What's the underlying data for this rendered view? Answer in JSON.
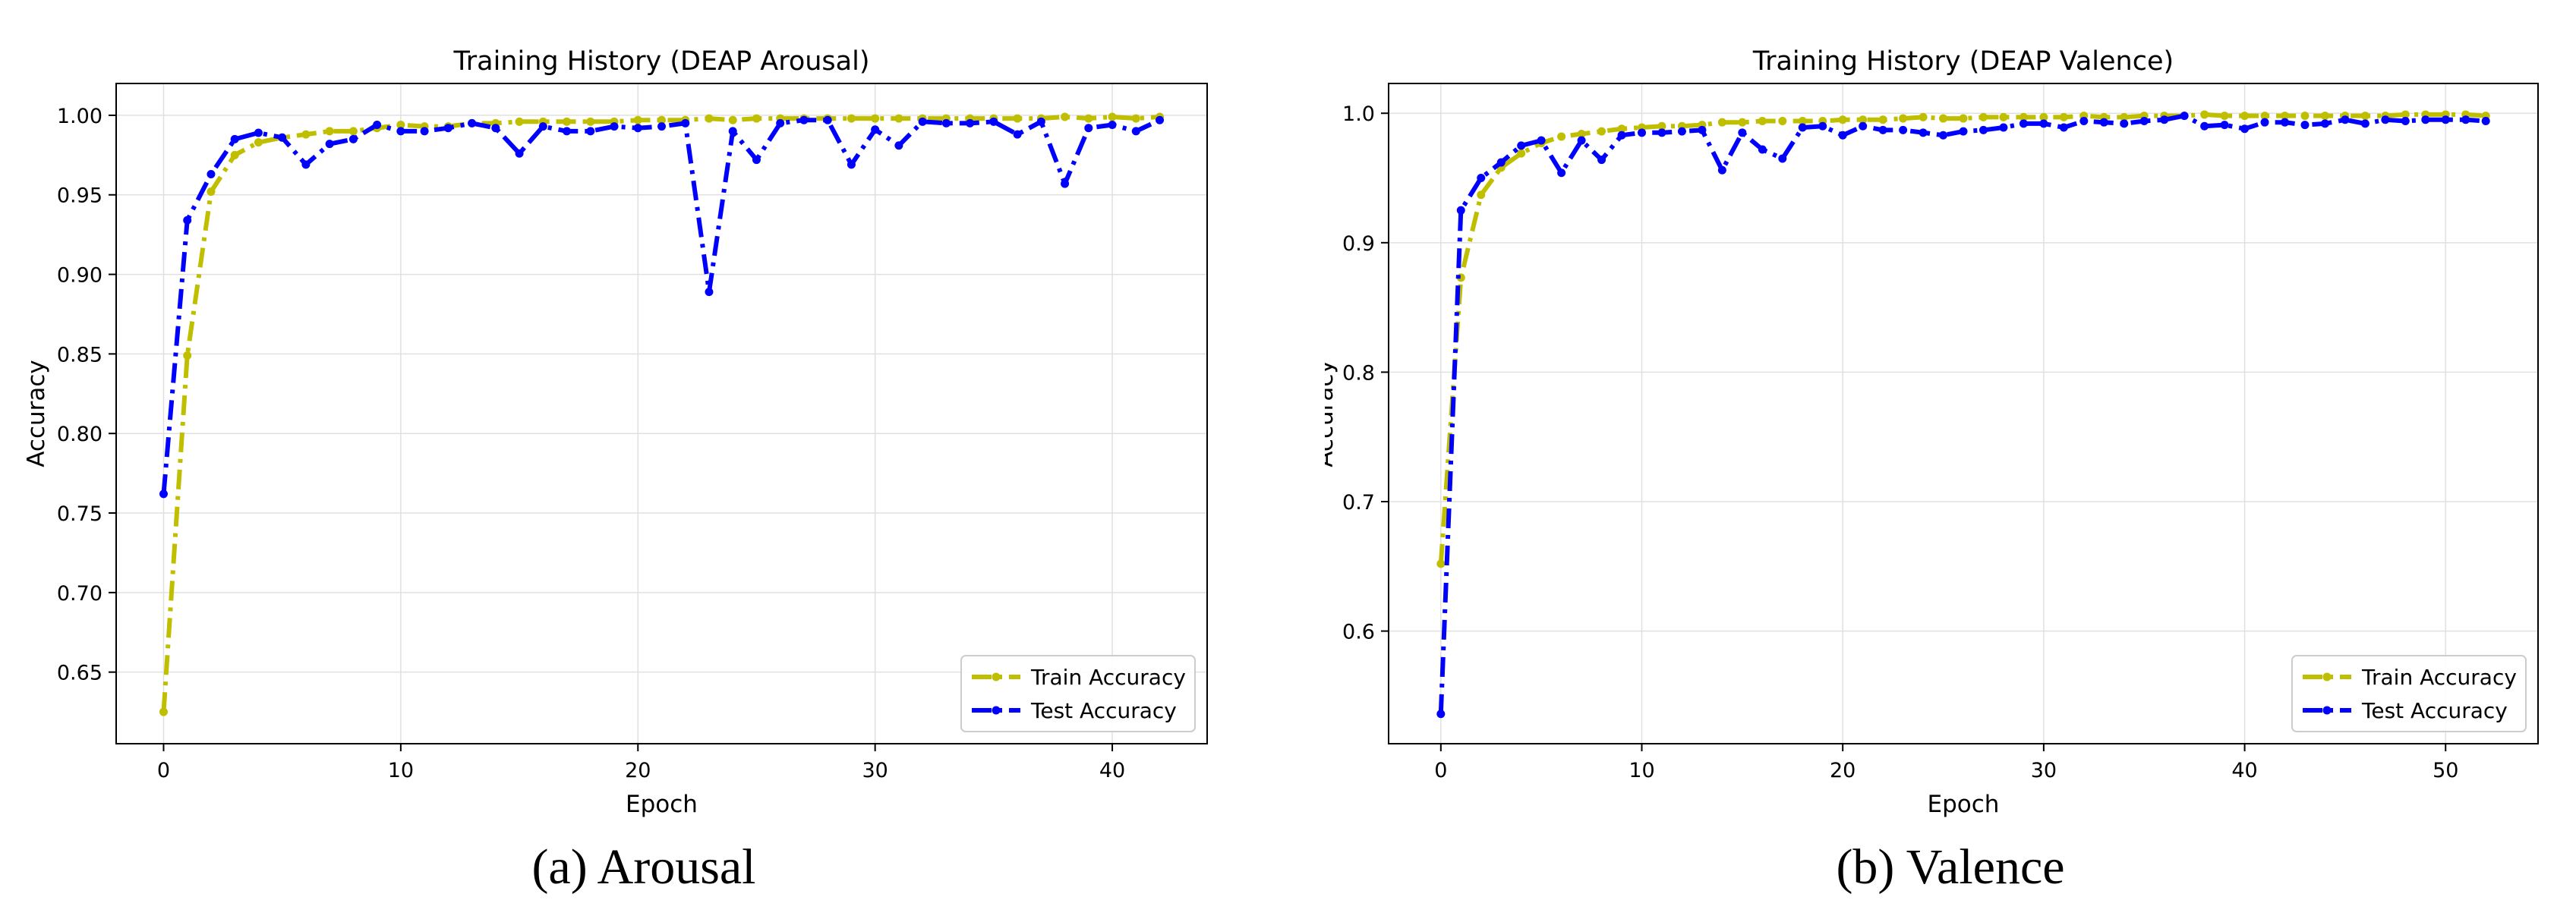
{
  "captions": [
    "(a) Arousal",
    "(b) Valence"
  ],
  "colors": {
    "train": "#bfbf00",
    "test": "#0000ff",
    "grid": "#e0e0e0",
    "axis": "#000000"
  },
  "chart_data": [
    {
      "type": "line",
      "title": "Training History (DEAP Arousal)",
      "xlabel": "Epoch",
      "ylabel": "Accuracy",
      "xlim": [
        -2,
        44
      ],
      "ylim": [
        0.605,
        1.02
      ],
      "xticks": [
        0,
        10,
        20,
        30,
        40
      ],
      "yticks": [
        0.65,
        0.7,
        0.75,
        0.8,
        0.85,
        0.9,
        0.95,
        1.0
      ],
      "ytick_labels": [
        "0.65",
        "0.70",
        "0.75",
        "0.80",
        "0.85",
        "0.90",
        "0.95",
        "1.00"
      ],
      "grid": true,
      "legend": "lower-right",
      "series": [
        {
          "name": "Train Accuracy",
          "x": [
            0,
            1,
            2,
            3,
            4,
            5,
            6,
            7,
            8,
            9,
            10,
            11,
            12,
            13,
            14,
            15,
            16,
            17,
            18,
            19,
            20,
            21,
            22,
            23,
            24,
            25,
            26,
            27,
            28,
            29,
            30,
            31,
            32,
            33,
            34,
            35,
            36,
            37,
            38,
            39,
            40,
            41,
            42
          ],
          "values": [
            0.625,
            0.849,
            0.952,
            0.975,
            0.983,
            0.986,
            0.988,
            0.99,
            0.99,
            0.992,
            0.994,
            0.993,
            0.993,
            0.995,
            0.995,
            0.996,
            0.996,
            0.996,
            0.996,
            0.996,
            0.997,
            0.997,
            0.997,
            0.998,
            0.997,
            0.998,
            0.998,
            0.998,
            0.998,
            0.998,
            0.998,
            0.998,
            0.998,
            0.998,
            0.998,
            0.998,
            0.998,
            0.998,
            0.999,
            0.998,
            0.999,
            0.998,
            0.999
          ]
        },
        {
          "name": "Test Accuracy",
          "x": [
            0,
            1,
            2,
            3,
            4,
            5,
            6,
            7,
            8,
            9,
            10,
            11,
            12,
            13,
            14,
            15,
            16,
            17,
            18,
            19,
            20,
            21,
            22,
            23,
            24,
            25,
            26,
            27,
            28,
            29,
            30,
            31,
            32,
            33,
            34,
            35,
            36,
            37,
            38,
            39,
            40,
            41,
            42
          ],
          "values": [
            0.762,
            0.934,
            0.963,
            0.985,
            0.989,
            0.986,
            0.969,
            0.982,
            0.985,
            0.994,
            0.99,
            0.99,
            0.992,
            0.995,
            0.992,
            0.976,
            0.993,
            0.99,
            0.99,
            0.993,
            0.992,
            0.993,
            0.995,
            0.889,
            0.99,
            0.972,
            0.995,
            0.997,
            0.997,
            0.969,
            0.991,
            0.981,
            0.996,
            0.995,
            0.995,
            0.996,
            0.988,
            0.996,
            0.957,
            0.992,
            0.994,
            0.99,
            0.997
          ]
        }
      ]
    },
    {
      "type": "line",
      "title": "Training History (DEAP Valence)",
      "xlabel": "Epoch",
      "ylabel": "Accuracy",
      "xlim": [
        -2.6,
        54.6
      ],
      "ylim": [
        0.513,
        1.023
      ],
      "xticks": [
        0,
        10,
        20,
        30,
        40,
        50
      ],
      "yticks": [
        0.6,
        0.7,
        0.8,
        0.9,
        1.0
      ],
      "ytick_labels": [
        "0.6",
        "0.7",
        "0.8",
        "0.9",
        "1.0"
      ],
      "grid": true,
      "legend": "lower-right",
      "series": [
        {
          "name": "Train Accuracy",
          "x": [
            0,
            1,
            2,
            3,
            4,
            5,
            6,
            7,
            8,
            9,
            10,
            11,
            12,
            13,
            14,
            15,
            16,
            17,
            18,
            19,
            20,
            21,
            22,
            23,
            24,
            25,
            26,
            27,
            28,
            29,
            30,
            31,
            32,
            33,
            34,
            35,
            36,
            37,
            38,
            39,
            40,
            41,
            42,
            43,
            44,
            45,
            46,
            47,
            48,
            49,
            50,
            51,
            52
          ],
          "values": [
            0.652,
            0.873,
            0.937,
            0.958,
            0.969,
            0.977,
            0.982,
            0.984,
            0.986,
            0.988,
            0.989,
            0.99,
            0.99,
            0.991,
            0.993,
            0.993,
            0.994,
            0.994,
            0.994,
            0.994,
            0.995,
            0.995,
            0.995,
            0.996,
            0.997,
            0.996,
            0.996,
            0.997,
            0.997,
            0.997,
            0.997,
            0.997,
            0.998,
            0.997,
            0.997,
            0.998,
            0.998,
            0.998,
            0.999,
            0.998,
            0.998,
            0.998,
            0.998,
            0.998,
            0.998,
            0.998,
            0.998,
            0.998,
            0.999,
            0.999,
            0.999,
            0.999,
            0.998
          ]
        },
        {
          "name": "Test Accuracy",
          "x": [
            0,
            1,
            2,
            3,
            4,
            5,
            6,
            7,
            8,
            9,
            10,
            11,
            12,
            13,
            14,
            15,
            16,
            17,
            18,
            19,
            20,
            21,
            22,
            23,
            24,
            25,
            26,
            27,
            28,
            29,
            30,
            31,
            32,
            33,
            34,
            35,
            36,
            37,
            38,
            39,
            40,
            41,
            42,
            43,
            44,
            45,
            46,
            47,
            48,
            49,
            50,
            51,
            52
          ],
          "values": [
            0.536,
            0.925,
            0.95,
            0.962,
            0.975,
            0.979,
            0.954,
            0.979,
            0.964,
            0.983,
            0.985,
            0.985,
            0.986,
            0.987,
            0.956,
            0.985,
            0.972,
            0.965,
            0.989,
            0.99,
            0.983,
            0.99,
            0.987,
            0.987,
            0.985,
            0.983,
            0.986,
            0.987,
            0.989,
            0.992,
            0.992,
            0.989,
            0.994,
            0.993,
            0.992,
            0.994,
            0.995,
            0.998,
            0.99,
            0.991,
            0.988,
            0.993,
            0.993,
            0.991,
            0.992,
            0.995,
            0.992,
            0.995,
            0.994,
            0.995,
            0.995,
            0.995,
            0.994
          ]
        }
      ]
    }
  ]
}
